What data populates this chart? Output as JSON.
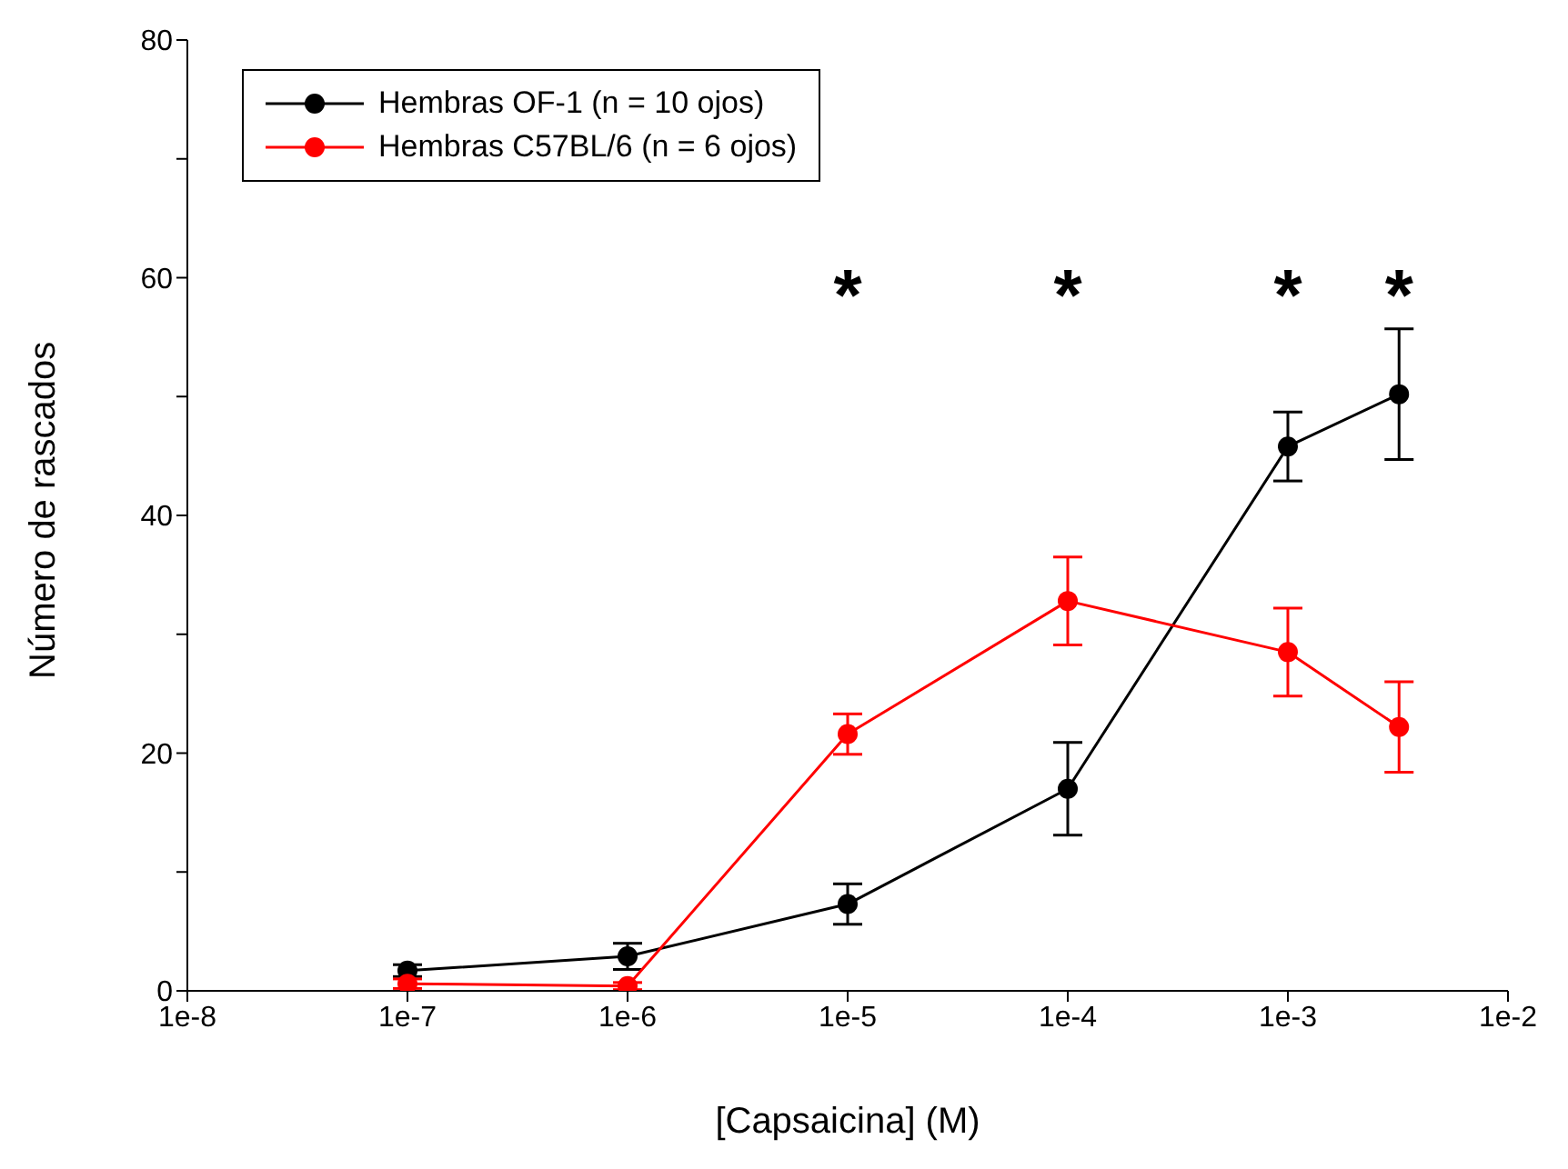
{
  "chart_data": {
    "type": "line",
    "xlabel": "[Capsaicina] (M)",
    "ylabel": "Número de rascados",
    "log": "x",
    "x": [
      1e-07,
      1e-06,
      1e-05,
      0.0001,
      0.001,
      0.0032
    ],
    "series": [
      {
        "name": "Hembras OF-1 (n = 10 ojos)",
        "color": "#000000",
        "values": [
          1.7,
          2.9,
          7.3,
          17,
          45.8,
          50.2
        ],
        "errors": [
          0.5,
          1.1,
          1.7,
          3.9,
          2.9,
          5.5
        ]
      },
      {
        "name": "Hembras C57BL/6 (n = 6 ojos)",
        "color": "#ff0000",
        "values": [
          0.6,
          0.4,
          21.6,
          32.8,
          28.5,
          22.2
        ],
        "errors": [
          0.4,
          0.3,
          1.7,
          3.7,
          3.7,
          3.8
        ]
      }
    ],
    "xlim": [
      1e-08,
      0.01
    ],
    "xticks": [
      {
        "value": 1e-08,
        "label": "1e-8"
      },
      {
        "value": 1e-07,
        "label": "1e-7"
      },
      {
        "value": 1e-06,
        "label": "1e-6"
      },
      {
        "value": 1e-05,
        "label": "1e-5"
      },
      {
        "value": 0.0001,
        "label": "1e-4"
      },
      {
        "value": 0.001,
        "label": "1e-3"
      },
      {
        "value": 0.01,
        "label": "1e-2"
      }
    ],
    "ylim": [
      0,
      80
    ],
    "yticks": [
      0,
      {
        "value": 10,
        "label": null
      },
      20,
      {
        "value": 30,
        "label": null
      },
      40,
      {
        "value": 50,
        "label": null
      },
      60,
      {
        "value": 70,
        "label": null
      },
      80
    ],
    "annotations": [
      "*",
      "*",
      "*",
      "*"
    ],
    "legend": "top left",
    "marker": "circle"
  }
}
